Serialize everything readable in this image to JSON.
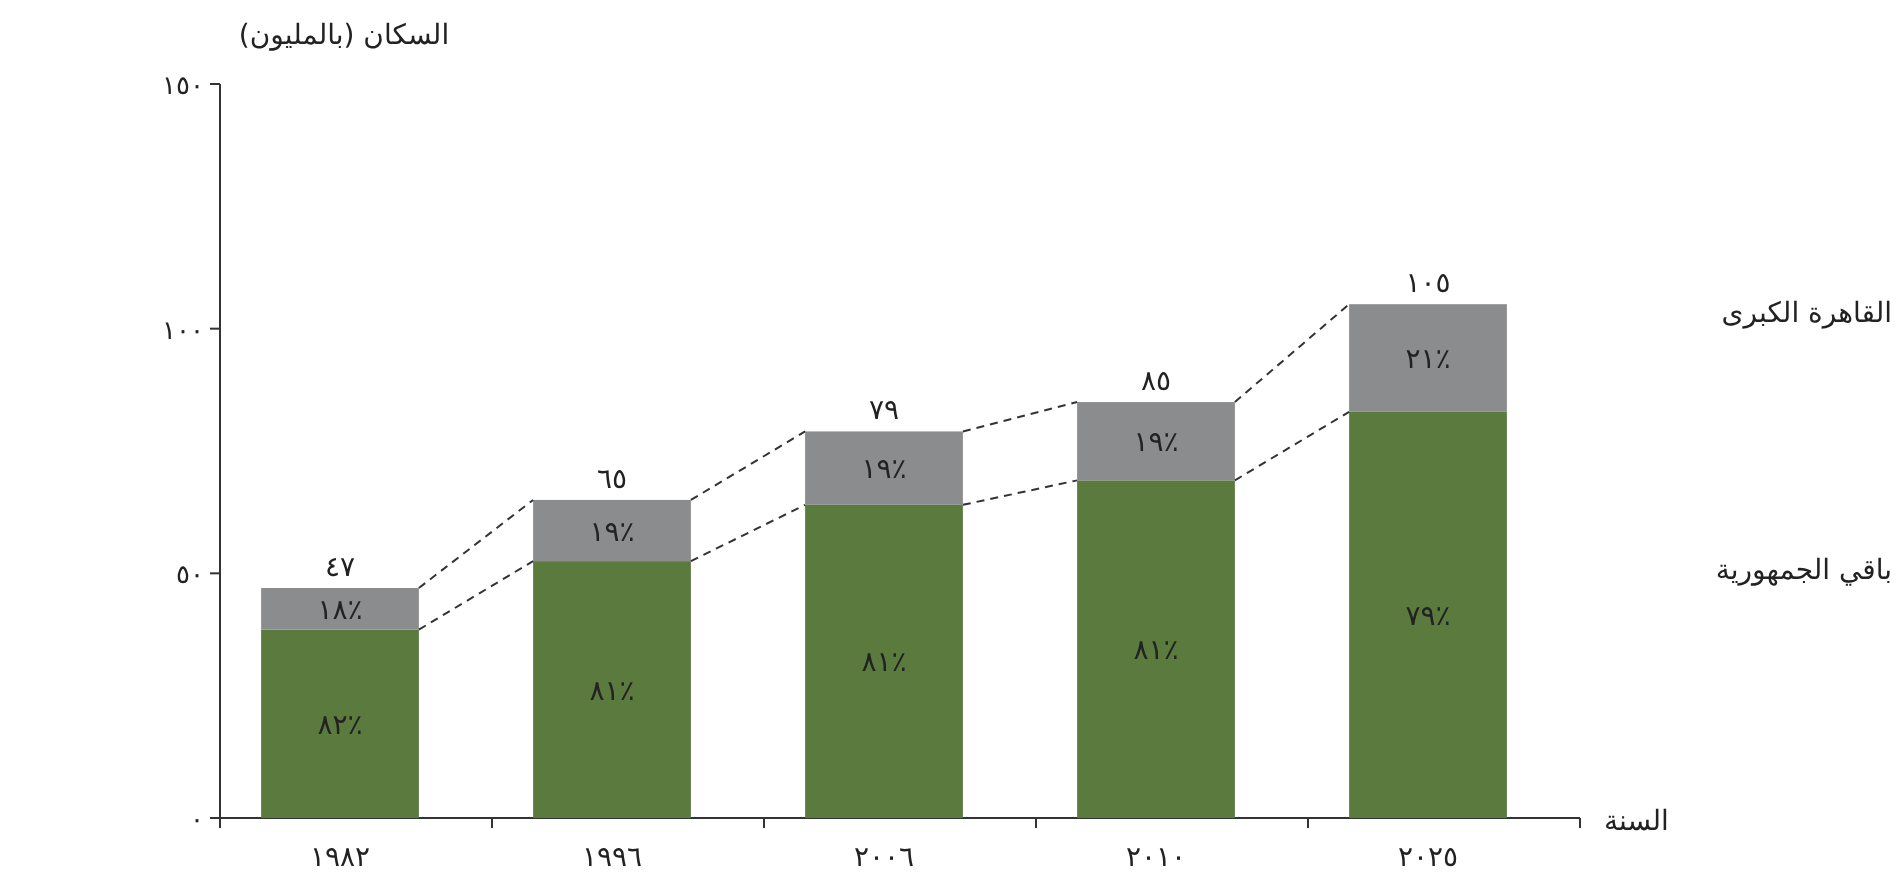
{
  "chart_data": {
    "type": "bar",
    "stacked": true,
    "ylabel": "السكان (بالمليون)",
    "xlabel": "السنة",
    "categories": [
      "١٩٨٢",
      "١٩٩٦",
      "٢٠٠٦",
      "٢٠١٠",
      "٢٠٢٥"
    ],
    "series": [
      {
        "name": "باقي الجمهورية",
        "color": "#5b7b3e",
        "values": [
          38.5,
          52.5,
          64,
          69,
          83
        ]
      },
      {
        "name": "القاهرة الكبرى",
        "color": "#8a8c8e",
        "values": [
          8.5,
          12.5,
          15,
          16,
          22
        ]
      }
    ],
    "annotations": [
      "٨٢٪",
      "٨١٪",
      "٨١٪",
      "٨١٪",
      "٧٩٪",
      "١٨٪",
      "١٩٪",
      "١٩٪",
      "١٩٪",
      "٢١٪"
    ],
    "totals": [
      "٤٧",
      "٦٥",
      "٧٩",
      "٨٥",
      "١٠٥"
    ],
    "ylim": [
      0,
      150
    ],
    "yticks": [
      {
        "value": 0,
        "label": "٠"
      },
      {
        "value": 50,
        "label": "٥٠"
      },
      {
        "value": 100,
        "label": "١٠٠"
      },
      {
        "value": 150,
        "label": "١٥٠"
      }
    ],
    "grid": false,
    "legend": "right"
  }
}
